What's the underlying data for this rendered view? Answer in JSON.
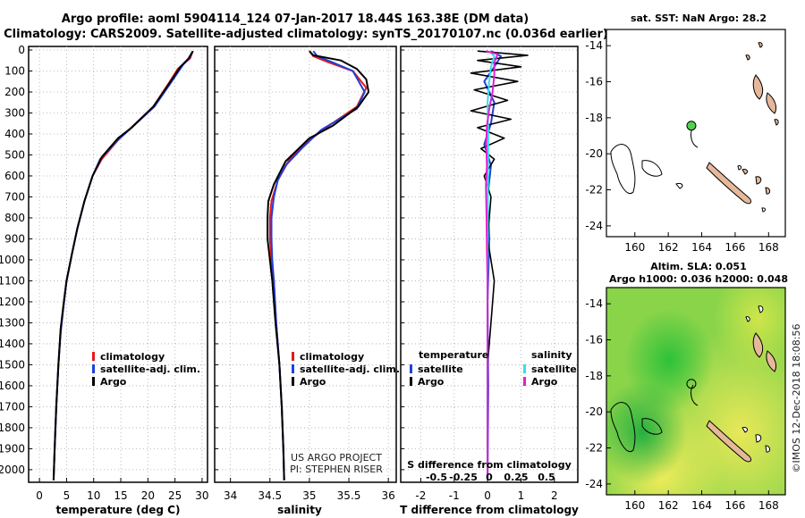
{
  "header": {
    "title_line1": "Argo profile: aoml 5904114_124 07-Jan-2017 18.44S 163.38E (DM data)",
    "title_line2": "Climatology: CARS2009. Satellite-adjusted climatology: synTS_20170107.nc (0.036d earlier)"
  },
  "colors": {
    "argo": "#000000",
    "climatology": "#e41a1c",
    "satellite": "#1f3fdc",
    "sat_salinity": "#33e0ee",
    "argo_salinity_diff": "#e020d0"
  },
  "credits": {
    "line1": "US ARGO PROJECT",
    "line2": "PI: STEPHEN RISER",
    "imos": "©IMOS 12-Dec-2018 18:08:56"
  },
  "chart_data": [
    {
      "type": "line",
      "xlabel": "temperature (deg C)",
      "xlim": [
        -2,
        31
      ],
      "xticks": [
        0,
        5,
        10,
        15,
        20,
        25,
        30
      ],
      "ylim": [
        2060,
        0
      ],
      "yticks": [
        0,
        100,
        200,
        300,
        400,
        500,
        600,
        700,
        800,
        900,
        1000,
        1100,
        1200,
        1300,
        1400,
        1500,
        1600,
        1700,
        1800,
        1900,
        2000
      ],
      "legend": [
        "climatology",
        "satellite-adj. clim.",
        "Argo"
      ],
      "series": [
        {
          "name": "climatology",
          "points": [
            [
              28.3,
              5
            ],
            [
              27.8,
              40
            ],
            [
              25.5,
              90
            ],
            [
              23.8,
              160
            ],
            [
              21.0,
              270
            ],
            [
              16.5,
              380
            ],
            [
              14.8,
              420
            ],
            [
              11.5,
              520
            ],
            [
              9.8,
              600
            ],
            [
              8.3,
              720
            ],
            [
              7.0,
              850
            ],
            [
              6.0,
              970
            ],
            [
              5.0,
              1100
            ],
            [
              4.5,
              1200
            ],
            [
              3.9,
              1330
            ],
            [
              3.5,
              1500
            ],
            [
              3.1,
              1700
            ],
            [
              2.8,
              1900
            ],
            [
              2.6,
              2050
            ]
          ]
        },
        {
          "name": "satellite-adj. clim.",
          "points": [
            [
              28.3,
              5
            ],
            [
              27.6,
              40
            ],
            [
              26.5,
              70
            ],
            [
              24.4,
              150
            ],
            [
              21.2,
              270
            ],
            [
              17.0,
              370
            ],
            [
              14.0,
              440
            ],
            [
              11.2,
              520
            ],
            [
              9.8,
              600
            ],
            [
              8.3,
              720
            ],
            [
              7.0,
              850
            ],
            [
              6.0,
              970
            ],
            [
              5.0,
              1100
            ],
            [
              4.4,
              1230
            ],
            [
              3.9,
              1350
            ],
            [
              3.5,
              1500
            ],
            [
              3.1,
              1700
            ],
            [
              2.8,
              1900
            ],
            [
              2.6,
              2050
            ]
          ]
        },
        {
          "name": "Argo",
          "points": [
            [
              28.3,
              5
            ],
            [
              27.5,
              40
            ],
            [
              26.0,
              80
            ],
            [
              24.2,
              150
            ],
            [
              21.0,
              270
            ],
            [
              17.0,
              370
            ],
            [
              14.5,
              420
            ],
            [
              11.5,
              510
            ],
            [
              9.8,
              600
            ],
            [
              8.3,
              720
            ],
            [
              7.0,
              850
            ],
            [
              6.0,
              970
            ],
            [
              5.0,
              1100
            ],
            [
              4.5,
              1200
            ],
            [
              3.9,
              1330
            ],
            [
              3.5,
              1500
            ],
            [
              3.1,
              1700
            ],
            [
              2.8,
              1900
            ],
            [
              2.6,
              2050
            ]
          ]
        }
      ]
    },
    {
      "type": "line",
      "xlabel": "salinity",
      "xlim": [
        33.8,
        36.1
      ],
      "xticks": [
        34,
        34.5,
        35,
        35.5,
        36
      ],
      "xtick_labels": [
        "34",
        "34.5",
        "35",
        "35.5",
        "36"
      ],
      "ylim": [
        2060,
        0
      ],
      "legend": [
        "climatology",
        "satellite-adj. clim.",
        "Argo"
      ],
      "series": [
        {
          "name": "climatology",
          "points": [
            [
              35.0,
              5
            ],
            [
              35.05,
              30
            ],
            [
              35.25,
              60
            ],
            [
              35.55,
              100
            ],
            [
              35.72,
              180
            ],
            [
              35.6,
              270
            ],
            [
              35.25,
              360
            ],
            [
              35.0,
              430
            ],
            [
              34.75,
              520
            ],
            [
              34.6,
              620
            ],
            [
              34.52,
              720
            ],
            [
              34.5,
              800
            ],
            [
              34.5,
              900
            ],
            [
              34.52,
              1000
            ],
            [
              34.55,
              1100
            ],
            [
              34.58,
              1300
            ],
            [
              34.62,
              1500
            ],
            [
              34.65,
              1700
            ],
            [
              34.67,
              1900
            ],
            [
              34.68,
              2050
            ]
          ]
        },
        {
          "name": "satellite-adj. clim.",
          "points": [
            [
              35.05,
              5
            ],
            [
              35.1,
              30
            ],
            [
              35.3,
              60
            ],
            [
              35.55,
              100
            ],
            [
              35.7,
              200
            ],
            [
              35.6,
              280
            ],
            [
              35.15,
              380
            ],
            [
              34.9,
              470
            ],
            [
              34.7,
              550
            ],
            [
              34.6,
              620
            ],
            [
              34.55,
              700
            ],
            [
              34.52,
              800
            ],
            [
              34.52,
              900
            ],
            [
              34.53,
              1000
            ],
            [
              34.55,
              1100
            ],
            [
              34.58,
              1300
            ],
            [
              34.62,
              1500
            ],
            [
              34.65,
              1700
            ],
            [
              34.67,
              1900
            ],
            [
              34.68,
              2050
            ]
          ]
        },
        {
          "name": "Argo",
          "points": [
            [
              35.0,
              5
            ],
            [
              35.05,
              25
            ],
            [
              35.4,
              50
            ],
            [
              35.6,
              90
            ],
            [
              35.72,
              140
            ],
            [
              35.75,
              200
            ],
            [
              35.62,
              270
            ],
            [
              35.3,
              360
            ],
            [
              35.0,
              420
            ],
            [
              34.7,
              530
            ],
            [
              34.55,
              640
            ],
            [
              34.48,
              720
            ],
            [
              34.47,
              800
            ],
            [
              34.47,
              900
            ],
            [
              34.5,
              1000
            ],
            [
              34.53,
              1100
            ],
            [
              34.57,
              1300
            ],
            [
              34.62,
              1500
            ],
            [
              34.65,
              1700
            ],
            [
              34.67,
              1900
            ],
            [
              34.68,
              2050
            ]
          ]
        }
      ]
    },
    {
      "type": "line",
      "xlabel": "T difference from climatology",
      "xlim": [
        -2.6,
        2.7
      ],
      "xticks": [
        -2,
        -1,
        0,
        1,
        2
      ],
      "sublabel": "S difference from climatology",
      "subticks": [
        "-0.5",
        "-0.25",
        "0",
        "0.25",
        "0.5"
      ],
      "ylim": [
        2060,
        0
      ],
      "legend_left_title": "temperature",
      "legend_right_title": "salinity",
      "legend_left": [
        "satellite",
        "Argo"
      ],
      "legend_right": [
        "satellite",
        "Argo"
      ],
      "series": [
        {
          "name": "temperature satellite",
          "points": [
            [
              0.1,
              5
            ],
            [
              0.4,
              30
            ],
            [
              0.2,
              80
            ],
            [
              -0.1,
              150
            ],
            [
              0.2,
              250
            ],
            [
              0.1,
              350
            ],
            [
              -0.1,
              450
            ],
            [
              0.1,
              550
            ],
            [
              0.0,
              700
            ],
            [
              0.05,
              900
            ],
            [
              0.0,
              1200
            ],
            [
              0.02,
              1600
            ],
            [
              0.0,
              2050
            ]
          ]
        },
        {
          "name": "temperature Argo",
          "points": [
            [
              -0.3,
              5
            ],
            [
              1.2,
              25
            ],
            [
              -0.3,
              50
            ],
            [
              1.0,
              80
            ],
            [
              -0.5,
              110
            ],
            [
              0.9,
              150
            ],
            [
              -0.4,
              190
            ],
            [
              0.6,
              240
            ],
            [
              -0.5,
              290
            ],
            [
              0.7,
              330
            ],
            [
              -0.3,
              370
            ],
            [
              0.5,
              420
            ],
            [
              -0.2,
              470
            ],
            [
              0.2,
              520
            ],
            [
              -0.1,
              600
            ],
            [
              0.1,
              700
            ],
            [
              0.0,
              900
            ],
            [
              0.2,
              1100
            ],
            [
              0.1,
              1300
            ],
            [
              0.0,
              1500
            ],
            [
              0.0,
              1800
            ],
            [
              0.0,
              2050
            ]
          ]
        },
        {
          "name": "salinity satellite",
          "points": [
            [
              0.05,
              5
            ],
            [
              0.2,
              30
            ],
            [
              0.1,
              80
            ],
            [
              0.05,
              150
            ],
            [
              0.0,
              250
            ],
            [
              0.02,
              400
            ],
            [
              0.01,
              700
            ],
            [
              0.0,
              1000
            ],
            [
              0.0,
              1500
            ],
            [
              0.0,
              2050
            ]
          ]
        },
        {
          "name": "salinity Argo",
          "points": [
            [
              -0.05,
              5
            ],
            [
              0.3,
              20
            ],
            [
              0.2,
              60
            ],
            [
              0.2,
              120
            ],
            [
              0.15,
              200
            ],
            [
              0.05,
              280
            ],
            [
              -0.02,
              360
            ],
            [
              -0.04,
              450
            ],
            [
              -0.02,
              550
            ],
            [
              -0.05,
              650
            ],
            [
              -0.03,
              800
            ],
            [
              -0.02,
              950
            ],
            [
              0.0,
              1100
            ],
            [
              0.0,
              1500
            ],
            [
              0.0,
              2050
            ]
          ]
        }
      ]
    },
    {
      "type": "map",
      "title": "sat. SST: NaN Argo: 28.2",
      "xlim": [
        158.3,
        169.0
      ],
      "ylim": [
        -24.6,
        -13.1
      ],
      "xticks": [
        160,
        162,
        164,
        166,
        168
      ],
      "yticks": [
        -14,
        -16,
        -18,
        -20,
        -22,
        -24
      ],
      "float_position": [
        163.38,
        -18.44
      ]
    },
    {
      "type": "heatmap",
      "title_line1": "Altim. SLA: 0.051",
      "title_line2": "Argo h1000: 0.036 h2000: 0.048",
      "xlim": [
        158.3,
        169.0
      ],
      "ylim": [
        -24.6,
        -13.1
      ],
      "xticks": [
        160,
        162,
        164,
        166,
        168
      ],
      "yticks": [
        -14,
        -16,
        -18,
        -20,
        -22,
        -24
      ],
      "float_position": [
        163.38,
        -18.44
      ]
    }
  ]
}
